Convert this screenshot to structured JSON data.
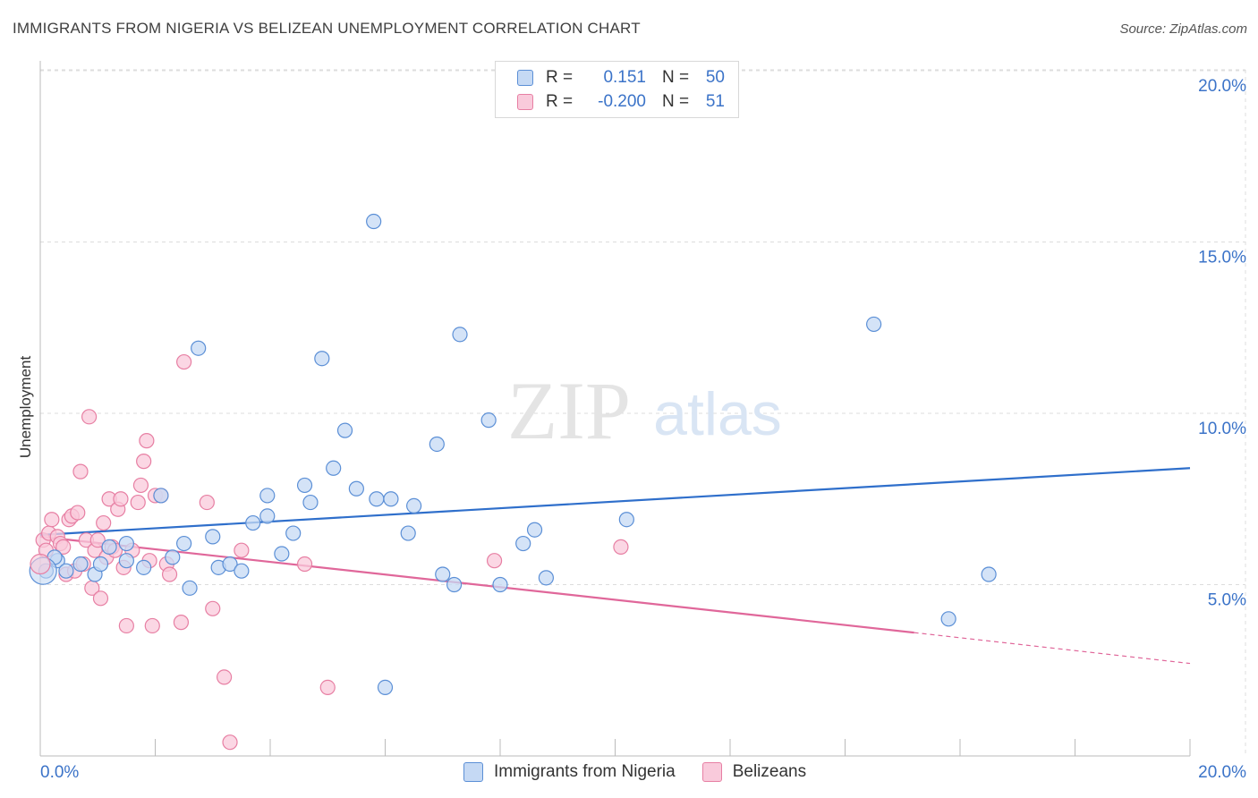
{
  "header": {
    "title": "IMMIGRANTS FROM NIGERIA VS BELIZEAN UNEMPLOYMENT CORRELATION CHART",
    "source": "Source: ZipAtlas.com"
  },
  "watermark": {
    "zip": "ZIP",
    "atlas": "atlas"
  },
  "legend": {
    "rows": [
      {
        "r_label": "R =",
        "r_value": "0.151",
        "n_label": "N =",
        "n_value": "50",
        "color": "#5b8fd6",
        "fill": "#c5d9f4"
      },
      {
        "r_label": "R =",
        "r_value": "-0.200",
        "n_label": "N =",
        "n_value": "51",
        "color": "#e77fa3",
        "fill": "#f9cadb"
      }
    ]
  },
  "chart_data": {
    "type": "scatter",
    "title": "IMMIGRANTS FROM NIGERIA VS BELIZEAN UNEMPLOYMENT CORRELATION CHART",
    "ylabel": "Unemployment",
    "xlabel": "",
    "xlim": [
      0,
      20
    ],
    "ylim": [
      0,
      20
    ],
    "x_tick_labels": [
      "0.0%",
      "20.0%"
    ],
    "y_ticks": [
      5,
      10,
      15,
      20
    ],
    "y_tick_labels": [
      "5.0%",
      "10.0%",
      "15.0%",
      "20.0%"
    ],
    "grid": true,
    "series": [
      {
        "name": "Immigrants from Nigeria",
        "color": "#5b8fd6",
        "fill": "#c5d9f4",
        "trend": {
          "x": [
            0,
            20
          ],
          "y": [
            6.45,
            8.4
          ],
          "style": "solid",
          "line_color": "#2f6fcb"
        },
        "points": [
          [
            0.1,
            5.4
          ],
          [
            0.3,
            5.7
          ],
          [
            0.45,
            5.4
          ],
          [
            0.7,
            5.6
          ],
          [
            0.95,
            5.3
          ],
          [
            1.05,
            5.6
          ],
          [
            1.2,
            6.1
          ],
          [
            1.5,
            5.7
          ],
          [
            1.5,
            6.2
          ],
          [
            1.8,
            5.5
          ],
          [
            2.1,
            7.6
          ],
          [
            2.3,
            5.8
          ],
          [
            2.5,
            6.2
          ],
          [
            2.6,
            4.9
          ],
          [
            2.75,
            11.9
          ],
          [
            3.0,
            6.4
          ],
          [
            3.1,
            5.5
          ],
          [
            3.3,
            5.6
          ],
          [
            3.5,
            5.4
          ],
          [
            3.7,
            6.8
          ],
          [
            3.95,
            7.0
          ],
          [
            3.95,
            7.6
          ],
          [
            4.2,
            5.9
          ],
          [
            4.4,
            6.5
          ],
          [
            4.6,
            7.9
          ],
          [
            4.7,
            7.4
          ],
          [
            4.9,
            11.6
          ],
          [
            5.1,
            8.4
          ],
          [
            5.3,
            9.5
          ],
          [
            5.5,
            7.8
          ],
          [
            5.8,
            15.6
          ],
          [
            5.85,
            7.5
          ],
          [
            6.0,
            2.0
          ],
          [
            6.1,
            7.5
          ],
          [
            6.4,
            6.5
          ],
          [
            6.5,
            7.3
          ],
          [
            6.9,
            9.1
          ],
          [
            7.0,
            5.3
          ],
          [
            7.2,
            5.0
          ],
          [
            7.3,
            12.3
          ],
          [
            7.8,
            9.8
          ],
          [
            8.0,
            5.0
          ],
          [
            8.4,
            6.2
          ],
          [
            8.6,
            6.6
          ],
          [
            8.8,
            5.2
          ],
          [
            10.2,
            6.9
          ],
          [
            14.5,
            12.6
          ],
          [
            15.8,
            4.0
          ],
          [
            16.5,
            5.3
          ],
          [
            0.25,
            5.8
          ]
        ]
      },
      {
        "name": "Belizeans",
        "color": "#e77fa3",
        "fill": "#f9cadb",
        "trend": {
          "x": [
            0,
            15.2
          ],
          "y": [
            6.4,
            3.6
          ],
          "dashed_x": [
            15.2,
            20
          ],
          "dashed_y": [
            3.6,
            2.7
          ],
          "style": "solid",
          "line_color": "#e0679a"
        },
        "points": [
          [
            0.05,
            6.3
          ],
          [
            0.1,
            6.0
          ],
          [
            0.15,
            6.5
          ],
          [
            0.2,
            6.9
          ],
          [
            0.3,
            6.4
          ],
          [
            0.35,
            6.2
          ],
          [
            0.45,
            5.3
          ],
          [
            0.5,
            6.9
          ],
          [
            0.55,
            7.0
          ],
          [
            0.6,
            5.4
          ],
          [
            0.65,
            7.1
          ],
          [
            0.7,
            8.3
          ],
          [
            0.75,
            5.6
          ],
          [
            0.8,
            6.3
          ],
          [
            0.85,
            9.9
          ],
          [
            0.9,
            4.9
          ],
          [
            0.95,
            6.0
          ],
          [
            1.0,
            6.3
          ],
          [
            1.05,
            4.6
          ],
          [
            1.1,
            6.8
          ],
          [
            1.15,
            5.8
          ],
          [
            1.2,
            7.5
          ],
          [
            1.25,
            6.1
          ],
          [
            1.3,
            6.0
          ],
          [
            1.35,
            7.2
          ],
          [
            1.4,
            7.5
          ],
          [
            1.45,
            5.5
          ],
          [
            1.5,
            3.8
          ],
          [
            1.6,
            6.0
          ],
          [
            1.7,
            7.4
          ],
          [
            1.75,
            7.9
          ],
          [
            1.8,
            8.6
          ],
          [
            1.85,
            9.2
          ],
          [
            1.9,
            5.7
          ],
          [
            1.95,
            3.8
          ],
          [
            2.0,
            7.6
          ],
          [
            2.1,
            7.6
          ],
          [
            2.2,
            5.6
          ],
          [
            2.25,
            5.3
          ],
          [
            2.45,
            3.9
          ],
          [
            2.5,
            11.5
          ],
          [
            2.9,
            7.4
          ],
          [
            3.0,
            4.3
          ],
          [
            3.2,
            2.3
          ],
          [
            3.3,
            0.4
          ],
          [
            3.5,
            6.0
          ],
          [
            4.6,
            5.6
          ],
          [
            5.0,
            2.0
          ],
          [
            7.9,
            5.7
          ],
          [
            10.1,
            6.1
          ],
          [
            0.4,
            6.1
          ]
        ]
      }
    ]
  },
  "bottom_legend": [
    {
      "label": "Immigrants from Nigeria",
      "color": "#5b8fd6",
      "fill": "#c5d9f4"
    },
    {
      "label": "Belizeans",
      "color": "#e77fa3",
      "fill": "#f9cadb"
    }
  ]
}
